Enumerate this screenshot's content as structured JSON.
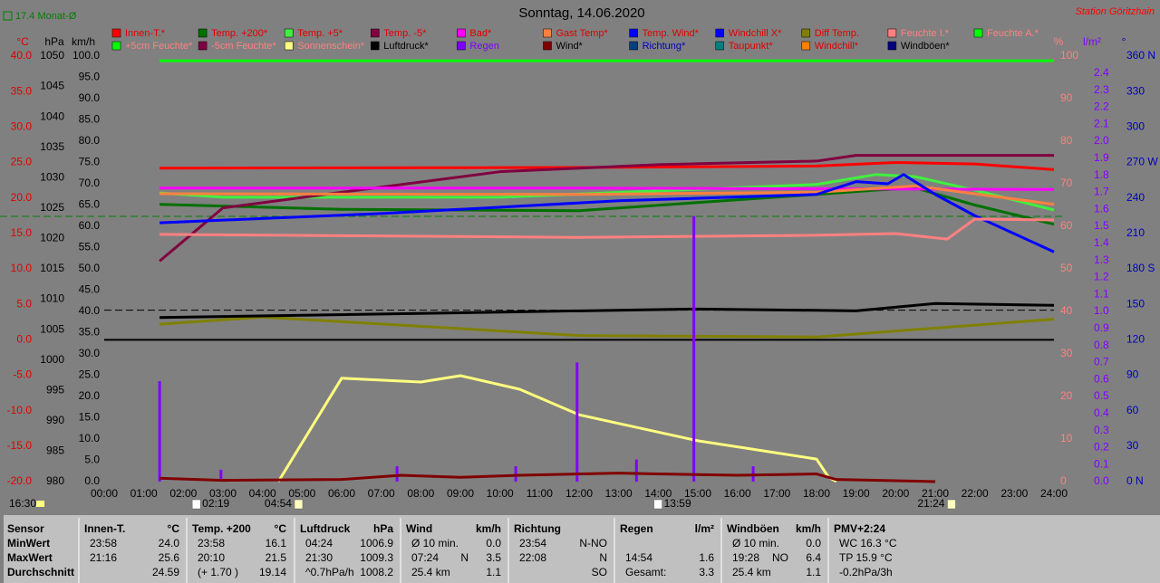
{
  "chart_data": {
    "type": "line",
    "title": "Sonntag, 14.06.2020",
    "station": "Station Göritzhain",
    "monthly_avg": {
      "label": "17.4 Monat-Ø",
      "value": 17.4,
      "axis": "C",
      "color": "#008000"
    },
    "reference_lines": [
      {
        "value": 1008.2,
        "axis": "hPa",
        "color": "#000000",
        "dashed": true
      },
      {
        "value": 0,
        "axis": "C",
        "color": "#000000",
        "dashed": false
      }
    ],
    "xlim": [
      0,
      24
    ],
    "xticks": [
      {
        "value": 0,
        "label": "00:00"
      },
      {
        "value": 1,
        "label": "01:00"
      },
      {
        "value": 2,
        "label": "02:00"
      },
      {
        "value": 3,
        "label": "03:00"
      },
      {
        "value": 4,
        "label": "04:00"
      },
      {
        "value": 5,
        "label": "05:00"
      },
      {
        "value": 6,
        "label": "06:00"
      },
      {
        "value": 7,
        "label": "07:00"
      },
      {
        "value": 8,
        "label": "08:00"
      },
      {
        "value": 9,
        "label": "09:00"
      },
      {
        "value": 10,
        "label": "10:00"
      },
      {
        "value": 11,
        "label": "11:00"
      },
      {
        "value": 12,
        "label": "12:00"
      },
      {
        "value": 13,
        "label": "13:00"
      },
      {
        "value": 14,
        "label": "14:00"
      },
      {
        "value": 15,
        "label": "15:00"
      },
      {
        "value": 16,
        "label": "16:00"
      },
      {
        "value": 17,
        "label": "17:00"
      },
      {
        "value": 18,
        "label": "18:00"
      },
      {
        "value": 19,
        "label": "19:00"
      },
      {
        "value": 20,
        "label": "20:00"
      },
      {
        "value": 21,
        "label": "21:00"
      },
      {
        "value": 22,
        "label": "22:00"
      },
      {
        "value": 23,
        "label": "23:00"
      },
      {
        "value": 24,
        "label": "24:00"
      }
    ],
    "axes": {
      "C": {
        "title": "°C",
        "side": "left",
        "color": "#e00000",
        "lim": [
          -20,
          40
        ],
        "ticks": [
          {
            "value": -20,
            "label": "-20.0"
          },
          {
            "value": -15,
            "label": "-15.0"
          },
          {
            "value": -10,
            "label": "-10.0"
          },
          {
            "value": -5,
            "label": "-5.0"
          },
          {
            "value": 0,
            "label": "0.0"
          },
          {
            "value": 5,
            "label": "5.0"
          },
          {
            "value": 10,
            "label": "10.0"
          },
          {
            "value": 15,
            "label": "15.0"
          },
          {
            "value": 20,
            "label": "20.0"
          },
          {
            "value": 25,
            "label": "25.0"
          },
          {
            "value": 30,
            "label": "30.0"
          },
          {
            "value": 35,
            "label": "35.0"
          },
          {
            "value": 40,
            "label": "40.0"
          }
        ]
      },
      "hPa": {
        "title": "hPa",
        "side": "left",
        "color": "#000000",
        "lim": [
          980,
          1050
        ],
        "ticks": [
          980,
          985,
          990,
          995,
          1000,
          1005,
          1010,
          1015,
          1020,
          1025,
          1030,
          1035,
          1040,
          1045,
          1050
        ]
      },
      "kmh": {
        "title": "km/h",
        "side": "left",
        "color": "#000000",
        "lim": [
          0,
          100
        ],
        "ticks": [
          {
            "value": 0,
            "label": "0.0"
          },
          {
            "value": 5,
            "label": "5.0"
          },
          {
            "value": 10,
            "label": "10.0"
          },
          {
            "value": 15,
            "label": "15.0"
          },
          {
            "value": 20,
            "label": "20.0"
          },
          {
            "value": 25,
            "label": "25.0"
          },
          {
            "value": 30,
            "label": "30.0"
          },
          {
            "value": 35,
            "label": "35.0"
          },
          {
            "value": 40,
            "label": "40.0"
          },
          {
            "value": 45,
            "label": "45.0"
          },
          {
            "value": 50,
            "label": "50.0"
          },
          {
            "value": 55,
            "label": "55.0"
          },
          {
            "value": 60,
            "label": "60.0"
          },
          {
            "value": 65,
            "label": "65.0"
          },
          {
            "value": 70,
            "label": "70.0"
          },
          {
            "value": 75,
            "label": "75.0"
          },
          {
            "value": 80,
            "label": "80.0"
          },
          {
            "value": 85,
            "label": "85.0"
          },
          {
            "value": 90,
            "label": "90.0"
          },
          {
            "value": 95,
            "label": "95.0"
          },
          {
            "value": 100,
            "label": "100.0"
          }
        ]
      },
      "pct": {
        "title": "%",
        "side": "right",
        "color": "#ff8080",
        "lim": [
          0,
          100
        ],
        "ticks": [
          0,
          10,
          20,
          30,
          40,
          50,
          60,
          70,
          80,
          90,
          100
        ]
      },
      "lm": {
        "title": "l/m²",
        "side": "right",
        "color": "#8000ff",
        "lim": [
          0,
          2.5
        ],
        "ticks": [
          {
            "value": 0,
            "label": "0.0"
          },
          0.1,
          0.2,
          0.3,
          0.4,
          0.5,
          0.6,
          0.7,
          0.8,
          0.9,
          {
            "value": 1,
            "label": "1.0"
          },
          1.1,
          1.2,
          1.3,
          1.4,
          1.5,
          1.6,
          1.7,
          1.8,
          1.9,
          {
            "value": 2,
            "label": "2.0"
          },
          2.1,
          2.2,
          2.3,
          2.4
        ]
      },
      "deg": {
        "title": "°",
        "side": "right",
        "color": "#0000c0",
        "lim": [
          0,
          360
        ],
        "ticks": [
          {
            "value": 0,
            "label": "0 N"
          },
          30,
          60,
          90,
          120,
          150,
          {
            "value": 180,
            "label": "180 S"
          },
          210,
          240,
          {
            "value": 270,
            "label": "270 W"
          },
          300,
          330,
          {
            "value": 360,
            "label": "360 N"
          }
        ]
      }
    },
    "series": [
      {
        "name": "Innen-T.*",
        "color": "#ff0000",
        "axis": "C",
        "x": [
          1.4,
          12,
          18,
          20,
          22,
          24
        ],
        "values": [
          24.2,
          24.3,
          24.5,
          25.0,
          24.8,
          24.0
        ]
      },
      {
        "name": "Temp. +200*",
        "color": "#007000",
        "axis": "C",
        "x": [
          1.4,
          6,
          12,
          18,
          19.5,
          20.5,
          22,
          24
        ],
        "values": [
          19.1,
          18.4,
          18.2,
          20.5,
          21.1,
          21.4,
          19.0,
          16.3
        ]
      },
      {
        "name": "Temp. +5*",
        "color": "#40f040",
        "axis": "C",
        "x": [
          1.4,
          3,
          10,
          18,
          19.5,
          20.5,
          22,
          24
        ],
        "values": [
          20.7,
          20.1,
          20.1,
          21.9,
          23.3,
          23.0,
          21.1,
          18.3
        ]
      },
      {
        "name": "Temp. -5*",
        "color": "#800040",
        "axis": "C",
        "x": [
          1.4,
          3,
          6,
          10,
          14,
          18,
          19,
          24
        ],
        "values": [
          11.1,
          18.6,
          20.8,
          23.7,
          24.7,
          25.2,
          26.0,
          26.0
        ]
      },
      {
        "name": "Bad*",
        "color": "#ff00ff",
        "axis": "C",
        "x": [
          1.4,
          12,
          24
        ],
        "values": [
          21.4,
          21.4,
          21.2
        ]
      },
      {
        "name": "Gast Temp*",
        "color": "#ff8040",
        "axis": "C",
        "x": [
          1.4,
          12,
          18,
          20.5,
          24
        ],
        "values": [
          20.6,
          20.5,
          20.8,
          21.7,
          19.1
        ]
      },
      {
        "name": "Temp. Wind*",
        "color": "#0000ff",
        "axis": "C",
        "x": [
          1.4,
          7,
          13,
          18,
          19,
          19.8,
          20.2,
          21,
          22,
          24
        ],
        "values": [
          16.5,
          17.8,
          19.6,
          20.5,
          22.3,
          22.0,
          23.3,
          20.5,
          17.5,
          12.4
        ]
      },
      {
        "name": "Windchill X*",
        "color": "#0000ff",
        "axis": "C"
      },
      {
        "name": "Diff Temp.",
        "color": "#808000",
        "axis": "C",
        "x": [
          1.4,
          4,
          12,
          18,
          24
        ],
        "values": [
          2.2,
          3.2,
          0.6,
          0.4,
          2.9
        ]
      },
      {
        "name": "Feuchte I.*",
        "color": "#ff8080",
        "axis": "pct",
        "x": [
          1.4,
          12,
          18,
          20,
          21.3,
          22,
          24
        ],
        "values": [
          58.1,
          57.4,
          57.9,
          58.3,
          57.0,
          61.7,
          61.5
        ]
      },
      {
        "name": "Feuchte A.*",
        "color": "#00ff00",
        "axis": "pct"
      },
      {
        "name": "+5cm Feuchte*",
        "color": "#00ff00",
        "axis": "pct",
        "x": [
          1.4,
          24
        ],
        "values": [
          98.9,
          98.9
        ]
      },
      {
        "name": "-5cm Feuchte*",
        "color": "#800040",
        "axis": "pct"
      },
      {
        "name": "Sonnenschein*",
        "color": "#ffff80",
        "axis": "pct",
        "x": [
          4.4,
          6,
          8,
          9,
          10.5,
          12,
          15,
          18,
          18.3,
          18.5
        ],
        "values": [
          0,
          24.3,
          23.4,
          24.9,
          21.7,
          15.7,
          9.6,
          5.3,
          1.1,
          0
        ]
      },
      {
        "name": "Luftdruck*",
        "color": "#000000",
        "axis": "hPa",
        "x": [
          1.4,
          15,
          19,
          21,
          24
        ],
        "values": [
          1007.0,
          1008.4,
          1008.1,
          1009.3,
          1009.0
        ]
      },
      {
        "name": "Regen",
        "color": "#8000ff",
        "axis": "lm",
        "kind": "bar",
        "x": [
          1.4,
          2.95,
          7.4,
          10.4,
          11.95,
          13.45,
          14.9,
          16.4
        ],
        "values": [
          0.59,
          0.07,
          0.09,
          0.09,
          0.7,
          0.13,
          1.56,
          0.09
        ]
      },
      {
        "name": "Wind*",
        "color": "#800000",
        "axis": "kmh",
        "x": [
          1.4,
          3,
          6,
          7.5,
          9,
          10.5,
          13,
          14,
          16,
          18,
          18.5,
          21
        ],
        "values": [
          0.8,
          0.3,
          0.5,
          1.5,
          1,
          1.5,
          2,
          1.8,
          1.5,
          1.8,
          0.5,
          0
        ]
      },
      {
        "name": "Richtung*",
        "color": "#004080",
        "axis": "deg"
      },
      {
        "name": "Taupunkt*",
        "color": "#008080",
        "axis": "C"
      },
      {
        "name": "Windchill*",
        "color": "#ff8000",
        "axis": "C"
      },
      {
        "name": "Windböen*",
        "color": "#000080",
        "axis": "kmh"
      }
    ],
    "left_note": "16:30",
    "events": [
      {
        "label": "02:19",
        "anchor": "start"
      },
      {
        "label": "04:54",
        "anchor": "end"
      },
      {
        "label": "13:59",
        "anchor": "start"
      },
      {
        "label": "21:24",
        "anchor": "end"
      }
    ],
    "table": {
      "header": [
        {
          "l": "Sensor"
        },
        {
          "l": "Innen-T.",
          "r": "°C"
        },
        {
          "l": "Temp. +200",
          "r": "°C"
        },
        {
          "l": "Luftdruck",
          "r": "hPa"
        },
        {
          "l": "Wind",
          "r": "km/h"
        },
        {
          "l": "Richtung"
        },
        {
          "l": "Regen",
          "r": "l/m²"
        },
        {
          "l": "Windböen",
          "r": "km/h"
        },
        {
          "l": "PMV+2:24"
        }
      ],
      "rows": [
        [
          {
            "l": "MinWert"
          },
          {
            "l": "23:58",
            "r": "24.0"
          },
          {
            "l": "23:58",
            "r": "16.1"
          },
          {
            "l": "04:24",
            "r": "1006.9"
          },
          {
            "l": "Ø 10 min.",
            "r": "0.0"
          },
          {
            "l": "23:54",
            "r": "N-NO"
          },
          {},
          {
            "l": "Ø 10 min.",
            "r": "0.0"
          },
          {
            "l": "WC 16.3 °C"
          }
        ],
        [
          {
            "l": "MaxWert"
          },
          {
            "l": "21:16",
            "r": "25.6"
          },
          {
            "l": "20:10",
            "r": "21.5"
          },
          {
            "l": "21:30",
            "r": "1009.3"
          },
          {
            "l": "07:24",
            "m": "N",
            "r": "3.5"
          },
          {
            "l": "22:08",
            "r": "N"
          },
          {
            "l": "14:54",
            "r": "1.6"
          },
          {
            "l": "19:28",
            "m": "NO",
            "r": "6.4"
          },
          {
            "l": "TP 15.9 °C"
          }
        ],
        [
          {
            "l": "Durchschnitt"
          },
          {
            "r": "24.59"
          },
          {
            "l": "(+ 1.70 )",
            "r": "19.14"
          },
          {
            "l": "^0.7hPa/h",
            "r": "1008.2"
          },
          {
            "l": "25.4 km",
            "r": "1.1"
          },
          {
            "r": "SO"
          },
          {
            "l": "Gesamt:",
            "r": "3.3"
          },
          {
            "l": "25.4 km",
            "r": "1.1"
          },
          {
            "l": "-0.2hPa/3h"
          }
        ]
      ]
    }
  }
}
